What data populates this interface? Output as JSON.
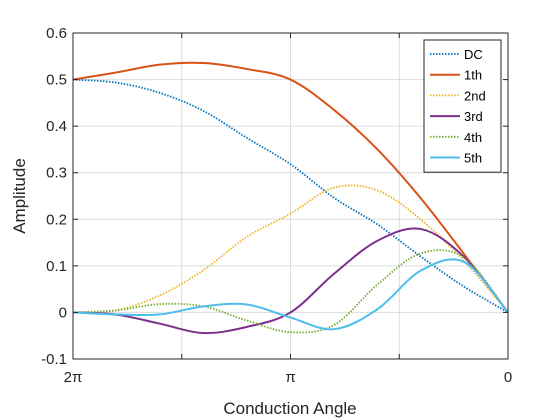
{
  "chart_data": {
    "type": "line",
    "title": "",
    "xlabel": "Conduction Angle",
    "ylabel": "Amplitude",
    "x_ticks": [
      {
        "value": 6.2832,
        "label": "2π"
      },
      {
        "value": 3.1416,
        "label": "π"
      },
      {
        "value": 0,
        "label": "0"
      }
    ],
    "x_minor_ticks": [
      4.7124,
      1.5708
    ],
    "xlim": [
      6.2832,
      0
    ],
    "x_reversed": true,
    "ylim": [
      -0.1,
      0.6
    ],
    "y_ticks": [
      {
        "value": -0.1,
        "label": "-0.1"
      },
      {
        "value": 0,
        "label": "0"
      },
      {
        "value": 0.1,
        "label": "0.1"
      },
      {
        "value": 0.2,
        "label": "0.2"
      },
      {
        "value": 0.3,
        "label": "0.3"
      },
      {
        "value": 0.4,
        "label": "0.4"
      },
      {
        "value": 0.5,
        "label": "0.5"
      },
      {
        "value": 0.6,
        "label": "0.6"
      }
    ],
    "grid": true,
    "legend_position": "top-right",
    "series": [
      {
        "name": "DC",
        "color": "#0072BD",
        "dash": "dotted",
        "x": [
          6.283,
          5.655,
          5.027,
          4.398,
          3.77,
          3.142,
          2.513,
          1.885,
          1.257,
          0.628,
          0
        ],
        "y": [
          0.5,
          0.4934,
          0.4714,
          0.4327,
          0.3745,
          0.3183,
          0.2462,
          0.1888,
          0.1195,
          0.0547,
          0
        ]
      },
      {
        "name": "1th",
        "color": "#D95319",
        "dash": "solid",
        "x": [
          6.283,
          5.655,
          5.027,
          4.398,
          3.77,
          3.142,
          2.513,
          1.885,
          1.257,
          0.628,
          0
        ],
        "y": [
          0.5,
          0.5153,
          0.532,
          0.5355,
          0.5226,
          0.5,
          0.4348,
          0.35,
          0.2447,
          0.124,
          0
        ]
      },
      {
        "name": "2nd",
        "color": "#EDB120",
        "dash": "dotted",
        "x": [
          6.283,
          5.655,
          5.027,
          4.398,
          3.77,
          3.142,
          2.513,
          1.885,
          1.257,
          0.628,
          0
        ],
        "y": [
          0,
          0.0048,
          0.0367,
          0.091,
          0.1625,
          0.2122,
          0.268,
          0.262,
          0.199,
          0.11,
          0
        ]
      },
      {
        "name": "3rd",
        "color": "#7E2F8E",
        "dash": "solid",
        "x": [
          6.283,
          5.655,
          5.027,
          4.398,
          3.77,
          3.142,
          2.513,
          1.885,
          1.257,
          0.628,
          0
        ],
        "y": [
          0,
          -0.0047,
          -0.0242,
          -0.0442,
          -0.031,
          0,
          0.083,
          0.154,
          0.179,
          0.118,
          0
        ]
      },
      {
        "name": "4th",
        "color": "#77AC30",
        "dash": "dotted",
        "x": [
          6.283,
          5.655,
          5.027,
          4.398,
          3.77,
          3.142,
          2.513,
          1.885,
          1.257,
          0.628,
          0
        ],
        "y": [
          0,
          0.0045,
          0.0178,
          0.013,
          -0.0175,
          -0.0424,
          -0.027,
          0.06,
          0.127,
          0.117,
          0
        ]
      },
      {
        "name": "5th",
        "color": "#4DBEEE",
        "dash": "solid",
        "x": [
          6.283,
          5.655,
          5.027,
          4.398,
          3.77,
          3.142,
          2.513,
          1.885,
          1.257,
          0.628,
          0
        ],
        "y": [
          0,
          -0.0043,
          -0.0043,
          0.013,
          0.017,
          -0.011,
          -0.036,
          0.007,
          0.09,
          0.108,
          0
        ]
      }
    ]
  }
}
